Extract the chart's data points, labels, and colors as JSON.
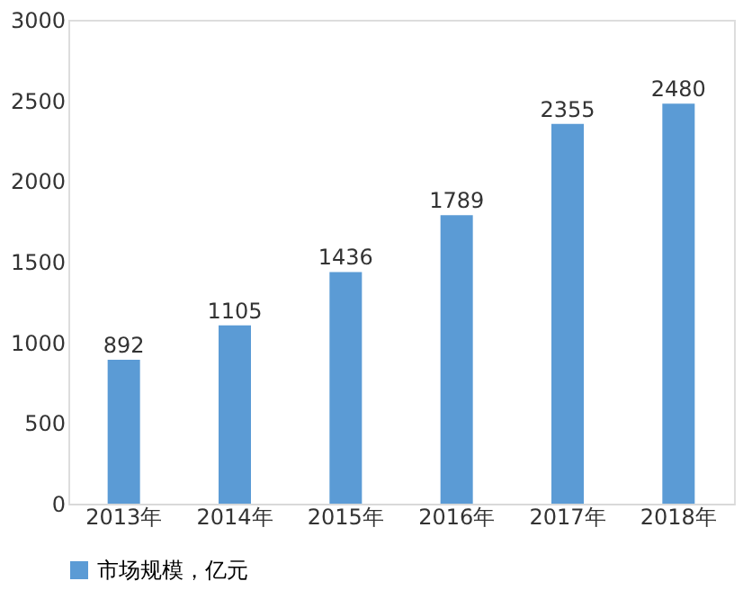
{
  "chart_data": {
    "type": "bar",
    "categories": [
      "2013年",
      "2014年",
      "2015年",
      "2016年",
      "2017年",
      "2018年"
    ],
    "series": [
      {
        "name": "市场规模，亿元",
        "color": "#5b9bd5",
        "values": [
          892,
          1105,
          1436,
          1789,
          2355,
          2480
        ]
      }
    ],
    "ylim": [
      0,
      3000
    ],
    "yticks": [
      0,
      500,
      1000,
      1500,
      2000,
      2500,
      3000
    ],
    "grid": false,
    "legend": "bottom",
    "data_labels": true
  }
}
